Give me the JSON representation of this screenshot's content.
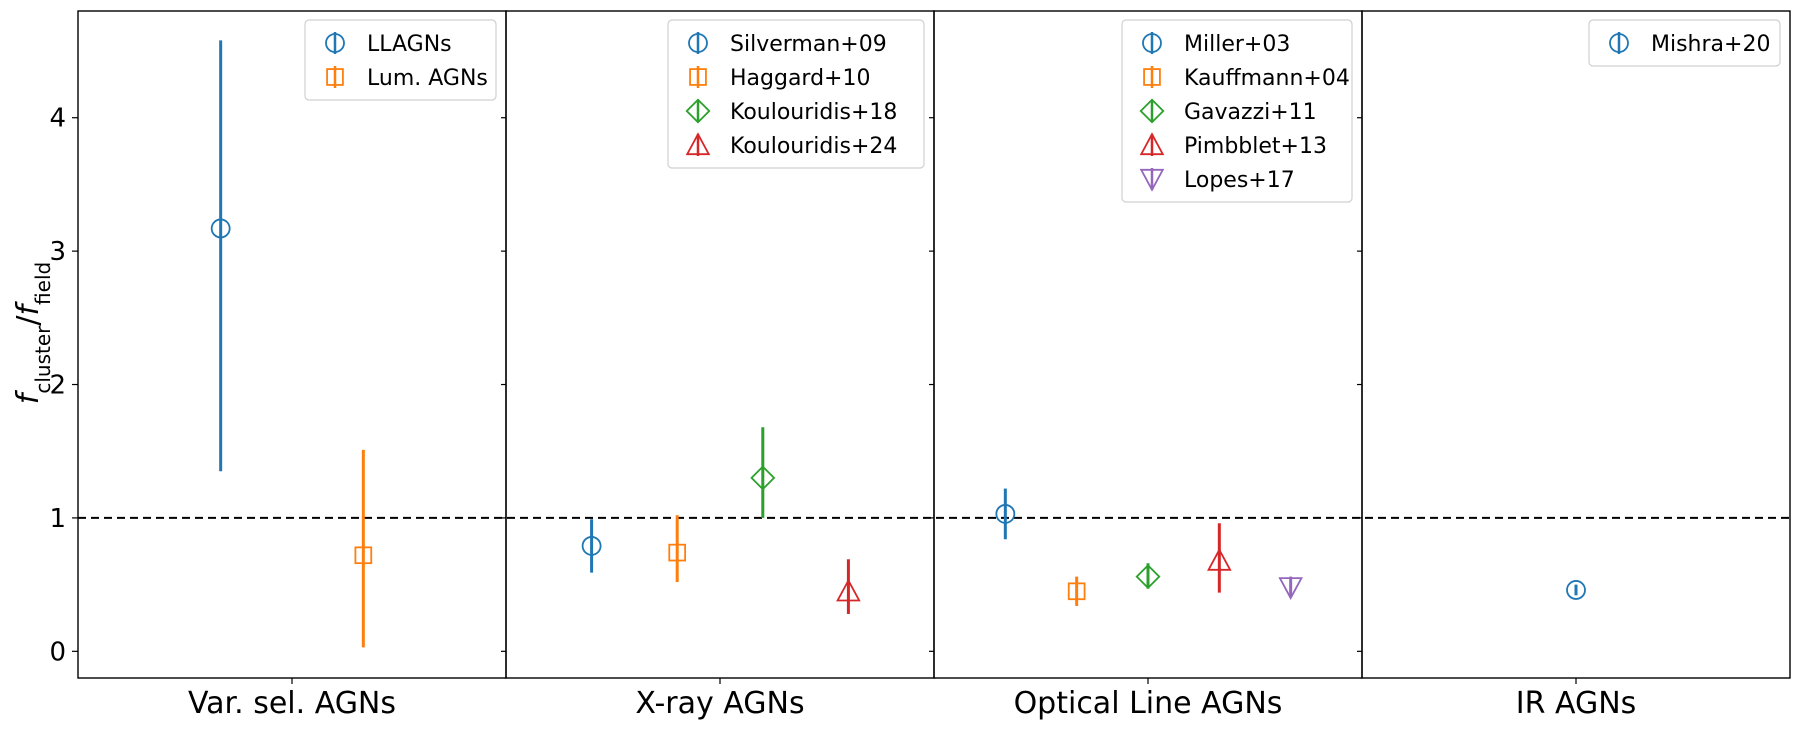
{
  "chart_data": {
    "type": "scatter",
    "ylabel": "f_cluster/f_field",
    "ylim": [
      -0.2,
      4.8
    ],
    "yticks": [
      0,
      1,
      2,
      3,
      4
    ],
    "reference_line": 1,
    "grid": false,
    "legend_placement": "top-right of each panel",
    "panels": [
      {
        "label": "Var. sel. AGNs",
        "series": [
          {
            "name": "LLAGNs",
            "marker": "circle",
            "color": "#1f77b4",
            "y": 3.17,
            "yerr_low": 1.35,
            "yerr_high": 4.58
          },
          {
            "name": "Lum. AGNs",
            "marker": "square",
            "color": "#ff7f0e",
            "y": 0.72,
            "yerr_low": 0.03,
            "yerr_high": 1.51
          }
        ]
      },
      {
        "label": "X-ray AGNs",
        "series": [
          {
            "name": "Silverman+09",
            "marker": "circle",
            "color": "#1f77b4",
            "y": 0.79,
            "yerr_low": 0.59,
            "yerr_high": 0.99
          },
          {
            "name": "Haggard+10",
            "marker": "square",
            "color": "#ff7f0e",
            "y": 0.74,
            "yerr_low": 0.52,
            "yerr_high": 1.02
          },
          {
            "name": "Koulouridis+18",
            "marker": "diamond",
            "color": "#2ca02c",
            "y": 1.3,
            "yerr_low": 1.0,
            "yerr_high": 1.68
          },
          {
            "name": "Koulouridis+24",
            "marker": "triangle-up",
            "color": "#d62728",
            "y": 0.45,
            "yerr_low": 0.28,
            "yerr_high": 0.69
          }
        ]
      },
      {
        "label": "Optical Line AGNs",
        "series": [
          {
            "name": "Miller+03",
            "marker": "circle",
            "color": "#1f77b4",
            "y": 1.03,
            "yerr_low": 0.84,
            "yerr_high": 1.22
          },
          {
            "name": "Kauffmann+04",
            "marker": "square",
            "color": "#ff7f0e",
            "y": 0.45,
            "yerr_low": 0.34,
            "yerr_high": 0.56
          },
          {
            "name": "Gavazzi+11",
            "marker": "diamond",
            "color": "#2ca02c",
            "y": 0.56,
            "yerr_low": 0.47,
            "yerr_high": 0.66
          },
          {
            "name": "Pimbblet+13",
            "marker": "triangle-up",
            "color": "#d62728",
            "y": 0.68,
            "yerr_low": 0.44,
            "yerr_high": 0.96
          },
          {
            "name": "Lopes+17",
            "marker": "triangle-down",
            "color": "#9467bd",
            "y": 0.48,
            "yerr_low": 0.41,
            "yerr_high": 0.56
          }
        ]
      },
      {
        "label": "IR AGNs",
        "series": [
          {
            "name": "Mishra+20",
            "marker": "circle",
            "color": "#1f77b4",
            "y": 0.46,
            "yerr_low": 0.42,
            "yerr_high": 0.5
          }
        ]
      }
    ]
  }
}
